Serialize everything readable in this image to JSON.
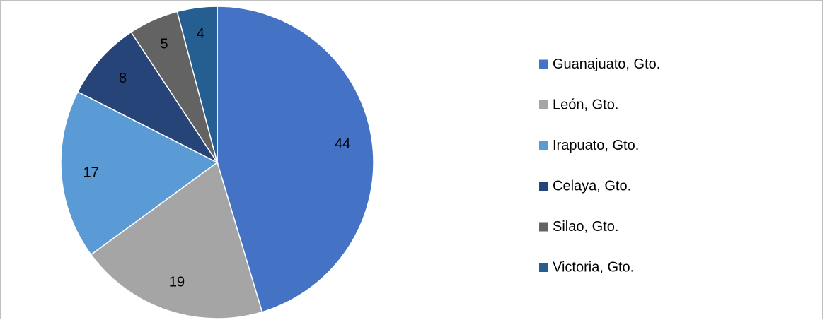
{
  "chart_data": {
    "type": "pie",
    "categories": [
      "Guanajuato, Gto.",
      "León, Gto.",
      "Irapuato, Gto.",
      "Celaya, Gto.",
      "Silao, Gto.",
      "Victoria, Gto."
    ],
    "values": [
      44,
      19,
      17,
      8,
      5,
      4
    ],
    "data_labels": [
      "44",
      "19",
      "17",
      "8",
      "5",
      "4"
    ],
    "colors": [
      "#4472C4",
      "#A5A5A5",
      "#5B9BD5",
      "#264478",
      "#636363",
      "#255E91"
    ],
    "legend_placement": "right",
    "title": ""
  }
}
